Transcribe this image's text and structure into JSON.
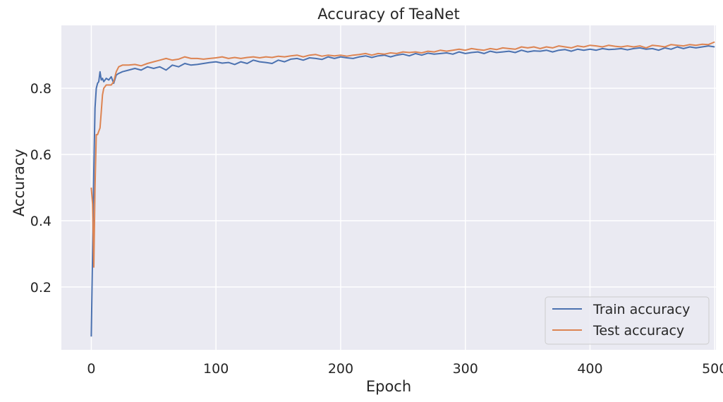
{
  "chart_data": {
    "type": "line",
    "title": "Accuracy of TeaNet",
    "xlabel": "Epoch",
    "ylabel": "Accuracy",
    "xlim": [
      -24,
      501
    ],
    "ylim": [
      0.01,
      0.99
    ],
    "xticks": [
      0,
      100,
      200,
      300,
      400,
      500
    ],
    "yticks": [
      0.2,
      0.4,
      0.6,
      0.8
    ],
    "ytick_labels": [
      "0.2",
      "0.4",
      "0.6",
      "0.8"
    ],
    "grid": true,
    "legend_position": "lower-right",
    "colors": {
      "background": "#eaeaf2",
      "grid": "#ffffff",
      "train": "#4c72b0",
      "test": "#dd8452"
    },
    "series": [
      {
        "name": "Train accuracy",
        "color": "#4c72b0",
        "x": [
          0,
          1,
          2,
          3,
          4,
          5,
          6,
          7,
          8,
          9,
          10,
          12,
          14,
          16,
          18,
          20,
          22,
          25,
          30,
          35,
          40,
          45,
          50,
          55,
          60,
          65,
          70,
          75,
          80,
          85,
          90,
          95,
          100,
          105,
          110,
          115,
          120,
          125,
          130,
          135,
          140,
          145,
          150,
          155,
          160,
          165,
          170,
          175,
          180,
          185,
          190,
          195,
          200,
          205,
          210,
          215,
          220,
          225,
          230,
          235,
          240,
          245,
          250,
          255,
          260,
          265,
          270,
          275,
          280,
          285,
          290,
          295,
          300,
          305,
          310,
          315,
          320,
          325,
          330,
          335,
          340,
          345,
          350,
          355,
          360,
          365,
          370,
          375,
          380,
          385,
          390,
          395,
          400,
          405,
          410,
          415,
          420,
          425,
          430,
          435,
          440,
          445,
          450,
          455,
          460,
          465,
          470,
          475,
          480,
          485,
          490,
          495,
          500
        ],
        "y": [
          0.05,
          0.3,
          0.55,
          0.74,
          0.8,
          0.815,
          0.82,
          0.85,
          0.825,
          0.83,
          0.82,
          0.83,
          0.825,
          0.835,
          0.815,
          0.84,
          0.845,
          0.85,
          0.855,
          0.86,
          0.855,
          0.865,
          0.86,
          0.865,
          0.855,
          0.87,
          0.865,
          0.875,
          0.87,
          0.872,
          0.875,
          0.878,
          0.88,
          0.876,
          0.878,
          0.872,
          0.88,
          0.875,
          0.885,
          0.88,
          0.878,
          0.875,
          0.885,
          0.88,
          0.888,
          0.89,
          0.885,
          0.892,
          0.89,
          0.887,
          0.895,
          0.89,
          0.895,
          0.892,
          0.89,
          0.895,
          0.898,
          0.893,
          0.898,
          0.9,
          0.895,
          0.9,
          0.903,
          0.898,
          0.905,
          0.9,
          0.906,
          0.903,
          0.905,
          0.907,
          0.903,
          0.91,
          0.905,
          0.908,
          0.91,
          0.905,
          0.912,
          0.908,
          0.91,
          0.912,
          0.908,
          0.915,
          0.91,
          0.913,
          0.912,
          0.915,
          0.91,
          0.915,
          0.917,
          0.912,
          0.918,
          0.915,
          0.918,
          0.915,
          0.92,
          0.917,
          0.918,
          0.92,
          0.916,
          0.92,
          0.922,
          0.918,
          0.92,
          0.915,
          0.922,
          0.918,
          0.925,
          0.92,
          0.925,
          0.922,
          0.925,
          0.928,
          0.925
        ]
      },
      {
        "name": "Test accuracy",
        "color": "#dd8452",
        "x": [
          0,
          1,
          2,
          3,
          4,
          5,
          6,
          7,
          8,
          9,
          10,
          12,
          14,
          16,
          18,
          20,
          22,
          25,
          30,
          35,
          40,
          45,
          50,
          55,
          60,
          65,
          70,
          75,
          80,
          85,
          90,
          95,
          100,
          105,
          110,
          115,
          120,
          125,
          130,
          135,
          140,
          145,
          150,
          155,
          160,
          165,
          170,
          175,
          180,
          185,
          190,
          195,
          200,
          205,
          210,
          215,
          220,
          225,
          230,
          235,
          240,
          245,
          250,
          255,
          260,
          265,
          270,
          275,
          280,
          285,
          290,
          295,
          300,
          305,
          310,
          315,
          320,
          325,
          330,
          335,
          340,
          345,
          350,
          355,
          360,
          365,
          370,
          375,
          380,
          385,
          390,
          395,
          400,
          405,
          410,
          415,
          420,
          425,
          430,
          435,
          440,
          445,
          450,
          455,
          460,
          465,
          470,
          475,
          480,
          485,
          490,
          495,
          500
        ],
        "y": [
          0.5,
          0.45,
          0.26,
          0.5,
          0.66,
          0.66,
          0.67,
          0.68,
          0.73,
          0.78,
          0.8,
          0.81,
          0.81,
          0.81,
          0.82,
          0.85,
          0.865,
          0.87,
          0.87,
          0.872,
          0.868,
          0.875,
          0.88,
          0.885,
          0.89,
          0.885,
          0.888,
          0.895,
          0.89,
          0.89,
          0.888,
          0.89,
          0.892,
          0.895,
          0.89,
          0.893,
          0.89,
          0.893,
          0.895,
          0.892,
          0.895,
          0.893,
          0.897,
          0.895,
          0.898,
          0.9,
          0.895,
          0.9,
          0.902,
          0.897,
          0.9,
          0.898,
          0.9,
          0.897,
          0.9,
          0.902,
          0.905,
          0.9,
          0.905,
          0.903,
          0.907,
          0.905,
          0.91,
          0.908,
          0.91,
          0.907,
          0.912,
          0.91,
          0.915,
          0.912,
          0.915,
          0.918,
          0.915,
          0.92,
          0.917,
          0.915,
          0.92,
          0.917,
          0.922,
          0.92,
          0.918,
          0.925,
          0.922,
          0.925,
          0.92,
          0.925,
          0.922,
          0.928,
          0.925,
          0.922,
          0.928,
          0.925,
          0.93,
          0.928,
          0.925,
          0.93,
          0.927,
          0.925,
          0.928,
          0.925,
          0.928,
          0.922,
          0.93,
          0.928,
          0.925,
          0.932,
          0.93,
          0.928,
          0.932,
          0.93,
          0.933,
          0.932,
          0.94
        ]
      }
    ]
  }
}
